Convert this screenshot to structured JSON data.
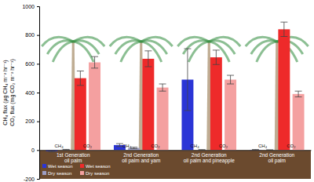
{
  "chart_data": {
    "type": "bar",
    "y_label": [
      "CH₄ flux (µg CH₄ m⁻² hr⁻¹)",
      "CO₂ flux (mg CO₂ m⁻² hr⁻¹)"
    ],
    "categories": [
      "1st Generation\noil palm",
      "2nd Generation\noil palm and yam",
      "2nd Generation\noil palm and pineapple",
      "2nd Generation\noil palm"
    ],
    "group_labels": [
      "CH₄",
      "CO₂"
    ],
    "series": [
      {
        "name": "Wet season",
        "color": "#2b35d6",
        "values": [
          -8,
          35,
          490,
          2
        ],
        "errors": [
          5,
          10,
          215,
          2
        ]
      },
      {
        "name": "Dry season",
        "color": "#9e9ec4",
        "values": [
          3,
          15,
          2,
          1
        ],
        "errors": [
          2,
          5,
          1,
          1
        ]
      },
      {
        "name": "Wet season",
        "color": "#ee2a2a",
        "values": [
          500,
          635,
          645,
          840
        ],
        "errors": [
          50,
          55,
          50,
          50
        ]
      },
      {
        "name": "Dry season",
        "color": "#f4a0a0",
        "values": [
          610,
          435,
          490,
          390
        ],
        "errors": [
          40,
          25,
          30,
          20
        ]
      }
    ],
    "ylim": [
      -200,
      1000
    ],
    "yticks": [
      -200,
      0,
      200,
      400,
      600,
      800,
      1000
    ],
    "legend": "lower left"
  }
}
